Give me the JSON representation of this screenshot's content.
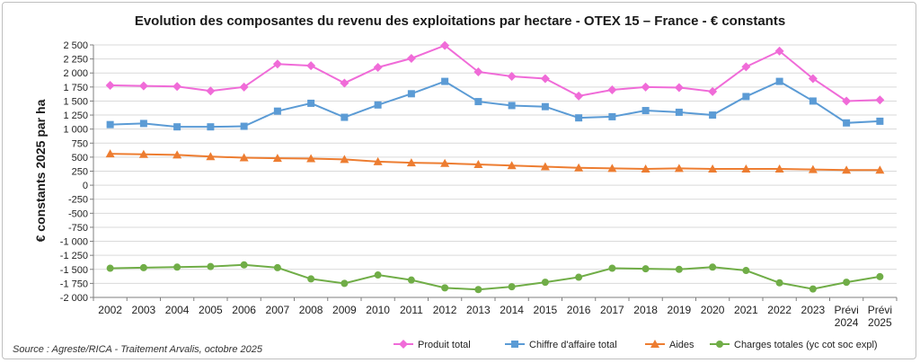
{
  "chart_data": {
    "type": "line",
    "title": "Evolution des composantes du revenu des exploitations par hectare - OTEX 15 – France - € constants",
    "ylabel": "€ constants 2025 par ha",
    "xlabel": "",
    "source": "Source : Agreste/RICA - Traitement Arvalis, octobre 2025",
    "ylim": [
      -2000,
      2500
    ],
    "yticks": [
      2500,
      2250,
      2000,
      1750,
      1500,
      1250,
      1000,
      750,
      500,
      250,
      0,
      -250,
      -500,
      -750,
      -1000,
      -1250,
      -1500,
      -1750,
      -2000
    ],
    "ytick_labels": [
      "2 500",
      "2 250",
      "2 000",
      "1 750",
      "1 500",
      "1 250",
      "1 000",
      "750",
      "500",
      "250",
      "0",
      "-250",
      "-500",
      "-750",
      "-1 000",
      "-1 250",
      "-1 500",
      "-1 750",
      "-2 000"
    ],
    "categories": [
      [
        "2002"
      ],
      [
        "2003"
      ],
      [
        "2004"
      ],
      [
        "2005"
      ],
      [
        "2006"
      ],
      [
        "2007"
      ],
      [
        "2008"
      ],
      [
        "2009"
      ],
      [
        "2010"
      ],
      [
        "2011"
      ],
      [
        "2012"
      ],
      [
        "2013"
      ],
      [
        "2014"
      ],
      [
        "2015"
      ],
      [
        "2016"
      ],
      [
        "2017"
      ],
      [
        "2018"
      ],
      [
        "2019"
      ],
      [
        "2020"
      ],
      [
        "2021"
      ],
      [
        "2022"
      ],
      [
        "2023"
      ],
      [
        "Prévi",
        "2024"
      ],
      [
        "Prévi",
        "2025"
      ]
    ],
    "grid": "horizontal",
    "legend_position": "bottom-right",
    "series": [
      {
        "name": "Produit total",
        "color": "#f06bd8",
        "marker": "diamond",
        "values": [
          1780,
          1770,
          1760,
          1680,
          1750,
          2160,
          2130,
          1820,
          2100,
          2260,
          2490,
          2020,
          1940,
          1900,
          1590,
          1700,
          1750,
          1740,
          1670,
          2110,
          2390,
          1900,
          1500,
          1520
        ]
      },
      {
        "name": "Chiffre d'affaire total",
        "color": "#5b9bd5",
        "marker": "square",
        "values": [
          1080,
          1100,
          1040,
          1040,
          1050,
          1320,
          1460,
          1210,
          1430,
          1630,
          1850,
          1490,
          1420,
          1400,
          1200,
          1220,
          1330,
          1300,
          1250,
          1580,
          1850,
          1500,
          1110,
          1140
        ]
      },
      {
        "name": "Aides",
        "color": "#ed7d31",
        "marker": "triangle",
        "values": [
          560,
          550,
          540,
          510,
          490,
          480,
          475,
          460,
          420,
          400,
          390,
          370,
          350,
          330,
          310,
          300,
          290,
          300,
          290,
          290,
          290,
          280,
          270,
          270
        ]
      },
      {
        "name": "Charges totales (yc cot soc expl)",
        "color": "#70ad47",
        "marker": "circle",
        "values": [
          -1480,
          -1470,
          -1460,
          -1450,
          -1420,
          -1470,
          -1670,
          -1750,
          -1600,
          -1690,
          -1830,
          -1860,
          -1810,
          -1730,
          -1640,
          -1480,
          -1490,
          -1500,
          -1460,
          -1520,
          -1740,
          -1850,
          -1730,
          -1630
        ]
      }
    ]
  }
}
